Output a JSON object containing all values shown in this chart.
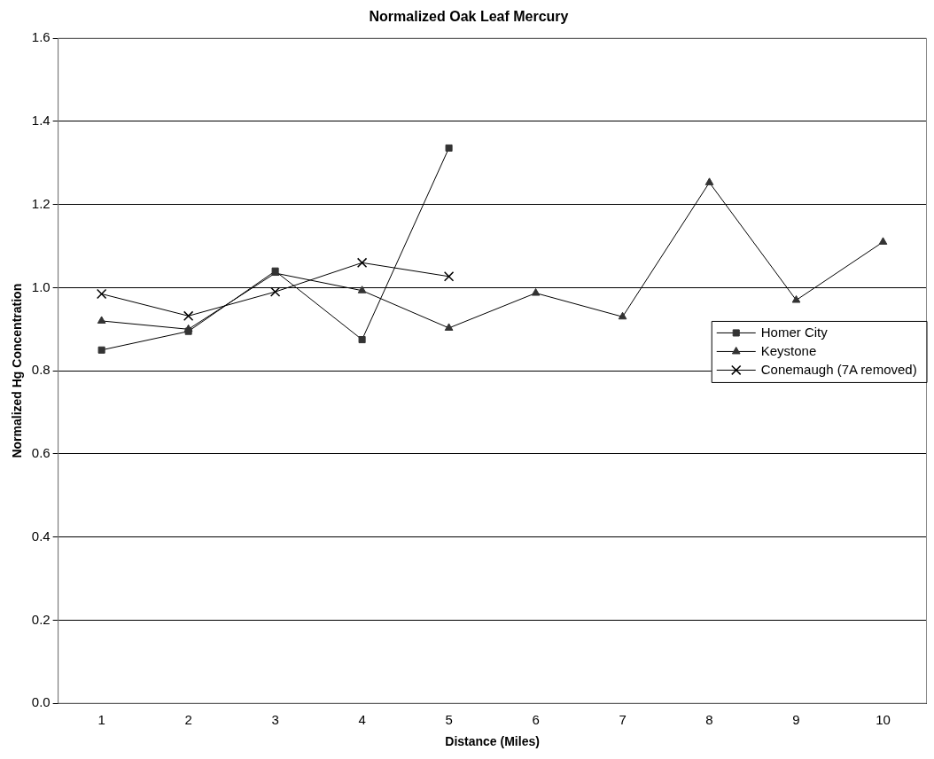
{
  "chart_data": {
    "type": "line",
    "title": "Normalized Oak Leaf Mercury",
    "xlabel": "Distance (Miles)",
    "ylabel": "Normalized Hg Concentration",
    "categories": [
      "1",
      "2",
      "3",
      "4",
      "5",
      "6",
      "7",
      "8",
      "9",
      "10"
    ],
    "series": [
      {
        "name": "Homer City",
        "color": "#333333",
        "marker": "square",
        "values": [
          0.85,
          0.895,
          1.04,
          0.875,
          1.336,
          null,
          null,
          null,
          null,
          null
        ]
      },
      {
        "name": "Keystone",
        "color": "#333333",
        "marker": "triangle",
        "values": [
          0.92,
          0.9,
          1.035,
          0.993,
          0.903,
          0.987,
          0.93,
          1.253,
          0.97,
          1.11
        ]
      },
      {
        "name": "Conemaugh (7A removed)",
        "color": "#000000",
        "marker": "cross",
        "values": [
          0.985,
          0.932,
          0.99,
          1.06,
          1.027,
          null,
          null,
          null,
          null,
          null
        ]
      }
    ],
    "ylim": [
      0,
      1.6
    ],
    "yticks": [
      {
        "value": 0,
        "label": "0.0"
      },
      0.2,
      0.4,
      0.6,
      0.8,
      {
        "value": 1,
        "label": "1.0"
      },
      1.2,
      1.4,
      1.6
    ],
    "grid": "y",
    "legend": "right",
    "line_style": "solid"
  }
}
